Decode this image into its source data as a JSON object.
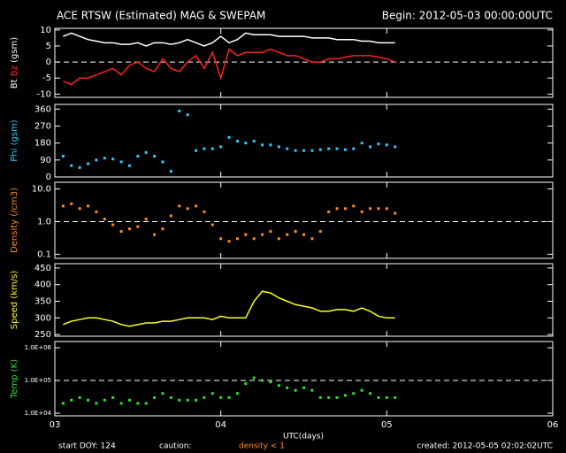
{
  "header": {
    "title": "ACE RTSW (Estimated) MAG & SWEPAM",
    "begin": "Begin: 2012-05-03 00:00:00UTC"
  },
  "footer": {
    "x_label": "UTC(days)",
    "start_doy": "start DOY: 124",
    "caution": "caution:",
    "caution_note": "density < 1",
    "created": "created: 2012-05-05 02:02:02UTC"
  },
  "chart_data": [
    {
      "type": "line",
      "y_label": "(gsm)",
      "xlim": [
        3,
        6
      ],
      "xticks": [
        3,
        4,
        5,
        6
      ],
      "ylim": [
        -11,
        10.5
      ],
      "yticks": [
        -10,
        -5,
        0,
        5,
        10
      ],
      "ref_line": 0,
      "x": [
        3.05,
        3.1,
        3.15,
        3.2,
        3.25,
        3.3,
        3.35,
        3.4,
        3.45,
        3.5,
        3.55,
        3.6,
        3.65,
        3.7,
        3.75,
        3.8,
        3.85,
        3.9,
        3.95,
        4.0,
        4.05,
        4.1,
        4.15,
        4.2,
        4.25,
        4.3,
        4.35,
        4.4,
        4.45,
        4.5,
        4.55,
        4.6,
        4.65,
        4.7,
        4.75,
        4.8,
        4.85,
        4.9,
        4.95,
        5.0,
        5.05
      ],
      "series": [
        {
          "name": "Bt",
          "color": "#ffffff",
          "values": [
            8,
            9,
            8,
            7,
            6.5,
            6,
            6,
            5.5,
            5.5,
            6,
            5,
            6,
            6,
            5.5,
            6,
            7,
            6,
            5,
            6,
            8,
            6,
            7,
            9,
            8.5,
            8.5,
            8.5,
            8,
            8,
            8,
            8,
            7.5,
            7.5,
            7.5,
            7,
            7,
            7,
            6.5,
            6.5,
            6,
            6,
            6
          ]
        },
        {
          "name": "Bz",
          "color": "#ff2020",
          "values": [
            -6,
            -7,
            -5,
            -5,
            -4,
            -3,
            -2,
            -4,
            -1,
            0,
            -2,
            -3,
            1,
            -2,
            -3,
            0,
            2,
            -2,
            3,
            -5,
            4,
            2,
            3,
            3,
            3,
            4,
            3,
            2,
            2,
            1,
            0,
            0,
            1,
            1,
            1.5,
            2,
            2,
            2,
            1.5,
            1,
            0
          ]
        }
      ]
    },
    {
      "type": "scatter",
      "y_label": "Phi (gsm)",
      "xlim": [
        3,
        6
      ],
      "xticks": [
        3,
        4,
        5,
        6
      ],
      "ylim": [
        0,
        385
      ],
      "yticks": [
        0,
        90,
        180,
        270,
        360
      ],
      "x": [
        3.05,
        3.1,
        3.15,
        3.2,
        3.25,
        3.3,
        3.35,
        3.4,
        3.45,
        3.5,
        3.55,
        3.6,
        3.65,
        3.7,
        3.75,
        3.8,
        3.85,
        3.9,
        3.95,
        4.0,
        4.05,
        4.1,
        4.15,
        4.2,
        4.25,
        4.3,
        4.35,
        4.4,
        4.45,
        4.5,
        4.55,
        4.6,
        4.65,
        4.7,
        4.75,
        4.8,
        4.85,
        4.9,
        4.95,
        5.0,
        5.05
      ],
      "series": [
        {
          "name": "Phi",
          "color": "#30c8ff",
          "values": [
            110,
            60,
            50,
            70,
            90,
            100,
            95,
            80,
            60,
            110,
            130,
            110,
            80,
            30,
            350,
            330,
            140,
            150,
            150,
            160,
            210,
            190,
            180,
            190,
            170,
            170,
            160,
            150,
            140,
            140,
            140,
            145,
            150,
            150,
            145,
            150,
            180,
            160,
            175,
            170,
            160
          ]
        }
      ]
    },
    {
      "type": "scatter",
      "y_label": "Density (/cm3)",
      "log": true,
      "xlim": [
        3,
        6
      ],
      "xticks": [
        3,
        4,
        5,
        6
      ],
      "ylim": [
        0.075,
        16
      ],
      "yticks": [
        0.1,
        {
          "value": 1,
          "label": "1.0"
        },
        {
          "value": 10,
          "label": "10.0"
        }
      ],
      "ref_line": 1,
      "x": [
        3.05,
        3.1,
        3.15,
        3.2,
        3.25,
        3.3,
        3.35,
        3.4,
        3.45,
        3.5,
        3.55,
        3.6,
        3.65,
        3.7,
        3.75,
        3.8,
        3.85,
        3.9,
        3.95,
        4.0,
        4.05,
        4.1,
        4.15,
        4.2,
        4.25,
        4.3,
        4.35,
        4.4,
        4.45,
        4.5,
        4.55,
        4.6,
        4.65,
        4.7,
        4.75,
        4.8,
        4.85,
        4.9,
        4.95,
        5.0,
        5.05
      ],
      "series": [
        {
          "name": "Density",
          "color": "#ff8c20",
          "values": [
            3,
            3.5,
            2.5,
            3,
            2,
            1.2,
            0.8,
            0.5,
            0.6,
            0.7,
            1.2,
            0.4,
            0.6,
            1.5,
            3,
            2.5,
            3,
            2,
            0.8,
            0.3,
            0.25,
            0.3,
            0.4,
            0.3,
            0.4,
            0.5,
            0.3,
            0.4,
            0.5,
            0.4,
            0.3,
            0.5,
            2,
            2.5,
            2.5,
            3,
            2,
            2.5,
            2.5,
            2.5,
            1.8
          ]
        }
      ]
    },
    {
      "type": "line",
      "y_label": "Speed (km/s)",
      "xlim": [
        3,
        6
      ],
      "xticks": [
        3,
        4,
        5,
        6
      ],
      "ylim": [
        245,
        463
      ],
      "yticks": [
        250,
        300,
        350,
        400,
        450
      ],
      "x": [
        3.05,
        3.1,
        3.15,
        3.2,
        3.25,
        3.3,
        3.35,
        3.4,
        3.45,
        3.5,
        3.55,
        3.6,
        3.65,
        3.7,
        3.75,
        3.8,
        3.85,
        3.9,
        3.95,
        4.0,
        4.05,
        4.1,
        4.15,
        4.2,
        4.25,
        4.3,
        4.35,
        4.4,
        4.45,
        4.5,
        4.55,
        4.6,
        4.65,
        4.7,
        4.75,
        4.8,
        4.85,
        4.9,
        4.95,
        5.0,
        5.05
      ],
      "series": [
        {
          "name": "Speed",
          "color": "#ffff20",
          "values": [
            280,
            290,
            295,
            300,
            300,
            295,
            290,
            280,
            275,
            280,
            285,
            285,
            290,
            290,
            295,
            300,
            300,
            300,
            295,
            305,
            300,
            300,
            300,
            350,
            380,
            375,
            360,
            350,
            340,
            335,
            330,
            320,
            320,
            325,
            325,
            320,
            330,
            320,
            305,
            300,
            300
          ]
        }
      ]
    },
    {
      "type": "scatter",
      "y_label": "Temp (K)",
      "log": true,
      "xlim": [
        3,
        6
      ],
      "xticks": [
        {
          "value": 3,
          "label": "03"
        },
        {
          "value": 4,
          "label": "04"
        },
        {
          "value": 5,
          "label": "05"
        },
        {
          "value": 6,
          "label": "06"
        }
      ],
      "ylim": [
        8300,
        1550000
      ],
      "yticks": [
        {
          "value": 10000,
          "label": "1.0E+04"
        },
        {
          "value": 100000,
          "label": "1.0E+05"
        },
        {
          "value": 1000000,
          "label": "1.0E+06"
        }
      ],
      "ref_line": 100000,
      "x": [
        3.05,
        3.1,
        3.15,
        3.2,
        3.25,
        3.3,
        3.35,
        3.4,
        3.45,
        3.5,
        3.55,
        3.6,
        3.65,
        3.7,
        3.75,
        3.8,
        3.85,
        3.9,
        3.95,
        4.0,
        4.05,
        4.1,
        4.15,
        4.2,
        4.25,
        4.3,
        4.35,
        4.4,
        4.45,
        4.5,
        4.55,
        4.6,
        4.65,
        4.7,
        4.75,
        4.8,
        4.85,
        4.9,
        4.95,
        5.0,
        5.05
      ],
      "series": [
        {
          "name": "Temp",
          "color": "#30e030",
          "values": [
            20000,
            25000,
            30000,
            25000,
            20000,
            25000,
            30000,
            20000,
            25000,
            20000,
            20000,
            30000,
            40000,
            30000,
            25000,
            25000,
            25000,
            30000,
            40000,
            30000,
            30000,
            40000,
            80000,
            120000,
            100000,
            90000,
            70000,
            60000,
            50000,
            60000,
            50000,
            30000,
            30000,
            30000,
            35000,
            40000,
            50000,
            40000,
            30000,
            30000,
            30000
          ]
        }
      ]
    }
  ]
}
